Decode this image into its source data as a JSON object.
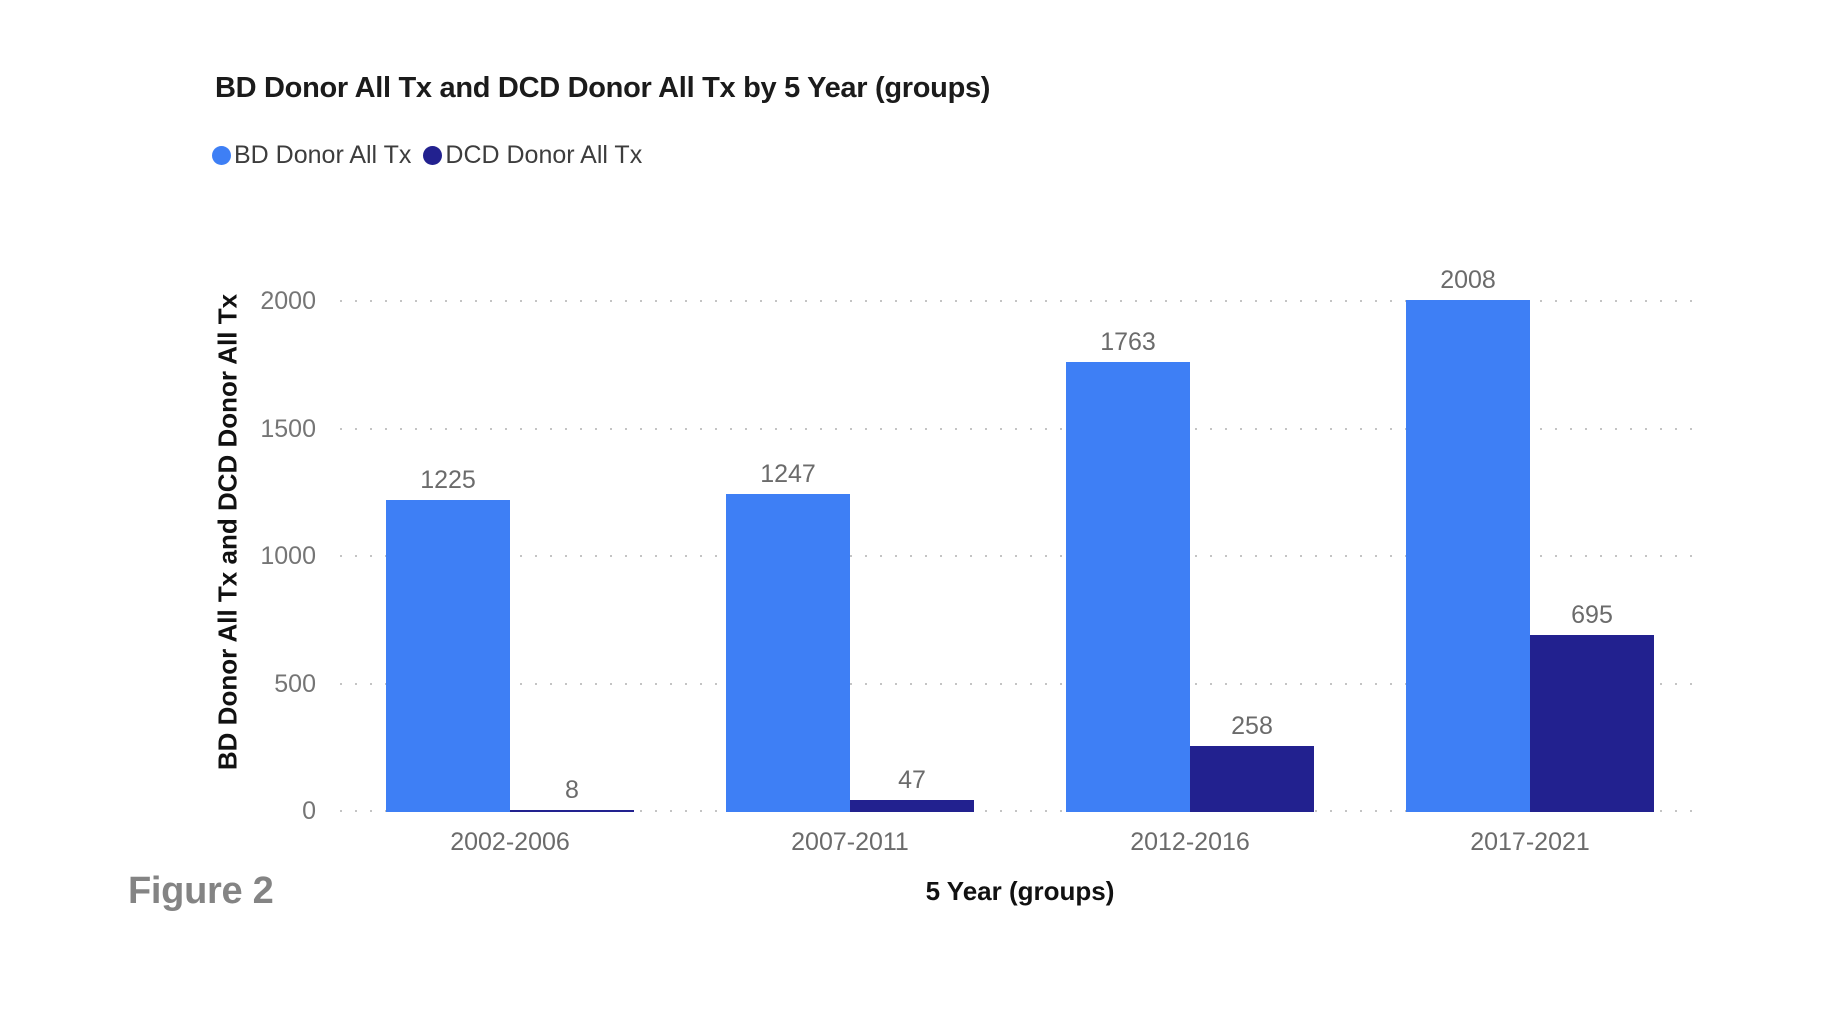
{
  "figure_caption": "Figure 2",
  "chart_data": {
    "type": "bar",
    "title": "BD Donor All Tx and DCD Donor All Tx by 5 Year (groups)",
    "xlabel": "5 Year (groups)",
    "ylabel": "BD Donor All Tx and DCD Donor All Tx",
    "categories": [
      "2002-2006",
      "2007-2011",
      "2012-2016",
      "2017-2021"
    ],
    "series": [
      {
        "name": "BD Donor All Tx",
        "color": "#3E7FF5",
        "values": [
          1225,
          1247,
          1763,
          2008
        ]
      },
      {
        "name": "DCD Donor All Tx",
        "color": "#22218F",
        "values": [
          8,
          47,
          258,
          695
        ]
      }
    ],
    "yticks": [
      0,
      500,
      1000,
      1500,
      2000
    ],
    "ylim": [
      0,
      2200
    ],
    "grid": "dotted-horizontal",
    "legend_position": "top-left",
    "data_labels": true
  }
}
